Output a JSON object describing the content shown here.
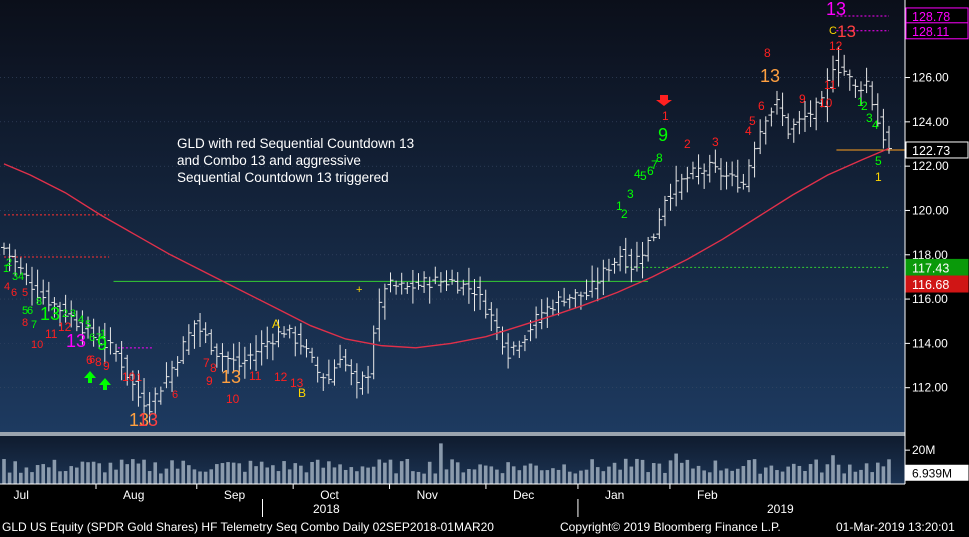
{
  "chart_data": {
    "type": "candlestick",
    "ticker": "GLD US Equity (SPDR Gold Shares) HF Telemetry Seq Combo",
    "period": "Daily 02SEP2018-01MAR20",
    "ylim": [
      110,
      129.5
    ],
    "y_ticks": [
      112,
      114,
      116,
      118,
      120,
      122,
      124,
      126
    ],
    "x_labels": [
      "Jul",
      "Aug",
      "Sep",
      "Oct",
      "Nov",
      "Dec",
      "Jan",
      "Feb"
    ],
    "year_labels": [
      "2018",
      "2019"
    ],
    "annotation": [
      "GLD with red Sequential Countdown 13",
      "and Combo 13 and aggressive",
      "Sequential Countdown 13 triggered"
    ],
    "price_labels": [
      {
        "text": "128.78",
        "color": "#ff00ff"
      },
      {
        "text": "128.11",
        "color": "#ff00ff"
      },
      {
        "text": "122.73",
        "color": "#ffffff"
      },
      {
        "text": "117.43",
        "color": "#00cc00"
      },
      {
        "text": "116.68",
        "color": "#ff2020"
      }
    ],
    "volume_labels": [
      "20M",
      "6.939M"
    ],
    "setup_labels": [
      {
        "text": "13",
        "color": "#ff00ff"
      },
      {
        "text": "13",
        "color": "#ff4040"
      },
      {
        "text": "C",
        "color": "#ffd700"
      },
      {
        "text": "12",
        "color": "#ff2020"
      },
      {
        "text": "8",
        "color": "#ff2020"
      },
      {
        "text": "13",
        "color": "#ffa040"
      },
      {
        "text": "6",
        "color": "#ff2020"
      },
      {
        "text": "9",
        "color": "#ff2020"
      },
      {
        "text": "10",
        "color": "#ff2020"
      },
      {
        "text": "11",
        "color": "#ff2020"
      },
      {
        "text": "4",
        "color": "#ff2020"
      },
      {
        "text": "5",
        "color": "#ff2020"
      },
      {
        "text": "1",
        "color": "#00ff00"
      },
      {
        "text": "2",
        "color": "#00ff00"
      },
      {
        "text": "3",
        "color": "#00ff00"
      },
      {
        "text": "4",
        "color": "#00ff00"
      },
      {
        "text": "5",
        "color": "#00ff00"
      },
      {
        "text": "1",
        "color": "#ffd700"
      },
      {
        "text": "1",
        "color": "#ff2020"
      },
      {
        "text": "9",
        "color": "#00ff00"
      },
      {
        "text": "2",
        "color": "#ff2020"
      },
      {
        "text": "3",
        "color": "#ff2020"
      },
      {
        "text": "1",
        "color": "#00ff00"
      },
      {
        "text": "2",
        "color": "#00ff00"
      },
      {
        "text": "3",
        "color": "#00ff00"
      },
      {
        "text": "4",
        "color": "#00ff00"
      },
      {
        "text": "5",
        "color": "#00ff00"
      },
      {
        "text": "6",
        "color": "#00ff00"
      },
      {
        "text": "7",
        "color": "#00ff00"
      },
      {
        "text": "8",
        "color": "#00ff00"
      },
      {
        "text": "A",
        "color": "#ffd700"
      },
      {
        "text": "B",
        "color": "#ffd700"
      },
      {
        "text": "13",
        "color": "#ffa040"
      },
      {
        "text": "13",
        "color": "#ffa040"
      },
      {
        "text": "13",
        "color": "#ff4040"
      },
      {
        "text": "13",
        "color": "#ff00ff"
      },
      {
        "text": "13",
        "color": "#00ff00"
      },
      {
        "text": "9",
        "color": "#00ff00"
      },
      {
        "text": "10",
        "color": "#ff2020"
      },
      {
        "text": "11",
        "color": "#ff2020"
      },
      {
        "text": "12",
        "color": "#ff2020"
      },
      {
        "text": "6",
        "color": "#ff2020"
      },
      {
        "text": "8",
        "color": "#ff2020"
      },
      {
        "text": "9",
        "color": "#ff2020"
      },
      {
        "text": "7",
        "color": "#ff2020"
      },
      {
        "text": "8",
        "color": "#ff2020"
      },
      {
        "text": "9",
        "color": "#ff2020"
      },
      {
        "text": "10",
        "color": "#ff2020"
      },
      {
        "text": "11",
        "color": "#ff2020"
      },
      {
        "text": "12",
        "color": "#ff2020"
      },
      {
        "text": "13",
        "color": "#ff2020"
      }
    ],
    "ma_line": [
      [
        0,
        122.1
      ],
      [
        6,
        121.6
      ],
      [
        14,
        120.8
      ],
      [
        22,
        119.8
      ],
      [
        30,
        118.9
      ],
      [
        38,
        118.0
      ],
      [
        46,
        117.2
      ],
      [
        54,
        116.4
      ],
      [
        62,
        115.6
      ],
      [
        70,
        114.8
      ],
      [
        78,
        114.2
      ],
      [
        86,
        113.9
      ],
      [
        94,
        113.8
      ],
      [
        102,
        114.0
      ],
      [
        110,
        114.3
      ],
      [
        118,
        114.8
      ],
      [
        126,
        115.3
      ],
      [
        132,
        115.7
      ],
      [
        140,
        116.3
      ],
      [
        148,
        117.0
      ],
      [
        156,
        117.8
      ],
      [
        164,
        118.7
      ],
      [
        172,
        119.7
      ],
      [
        180,
        120.7
      ],
      [
        188,
        121.6
      ],
      [
        196,
        122.3
      ],
      [
        202,
        122.8
      ]
    ],
    "horizontal_lines": [
      {
        "y": 116.8,
        "x0": 25,
        "x1": 147,
        "color": "#33cc33",
        "style": "solid"
      },
      {
        "y": 117.43,
        "x0": 142,
        "x1": 202,
        "color": "#33cc33",
        "style": "dotted"
      },
      {
        "y": 119.8,
        "x0": 0,
        "x1": 24,
        "color": "#ff3030",
        "style": "dotted"
      },
      {
        "y": 117.9,
        "x0": 0,
        "x1": 24,
        "color": "#ff3030",
        "style": "dotted"
      },
      {
        "y": 113.8,
        "x0": 26,
        "x1": 34,
        "color": "#ff00ff",
        "style": "dotted"
      },
      {
        "y": 128.78,
        "x0": 190,
        "x1": 202,
        "color": "#ff00ff",
        "style": "dotted"
      },
      {
        "y": 128.11,
        "x0": 190,
        "x1": 202,
        "color": "#ff00ff",
        "style": "dotted"
      }
    ]
  },
  "footer": {
    "left": "GLD US Equity (SPDR Gold Shares) HF Telemetry Seq Combo  Daily 02SEP2018-01MAR20",
    "copyright": "Copyright© 2019 Bloomberg Finance L.P.",
    "timestamp": "01-Mar-2019 13:20:01"
  }
}
